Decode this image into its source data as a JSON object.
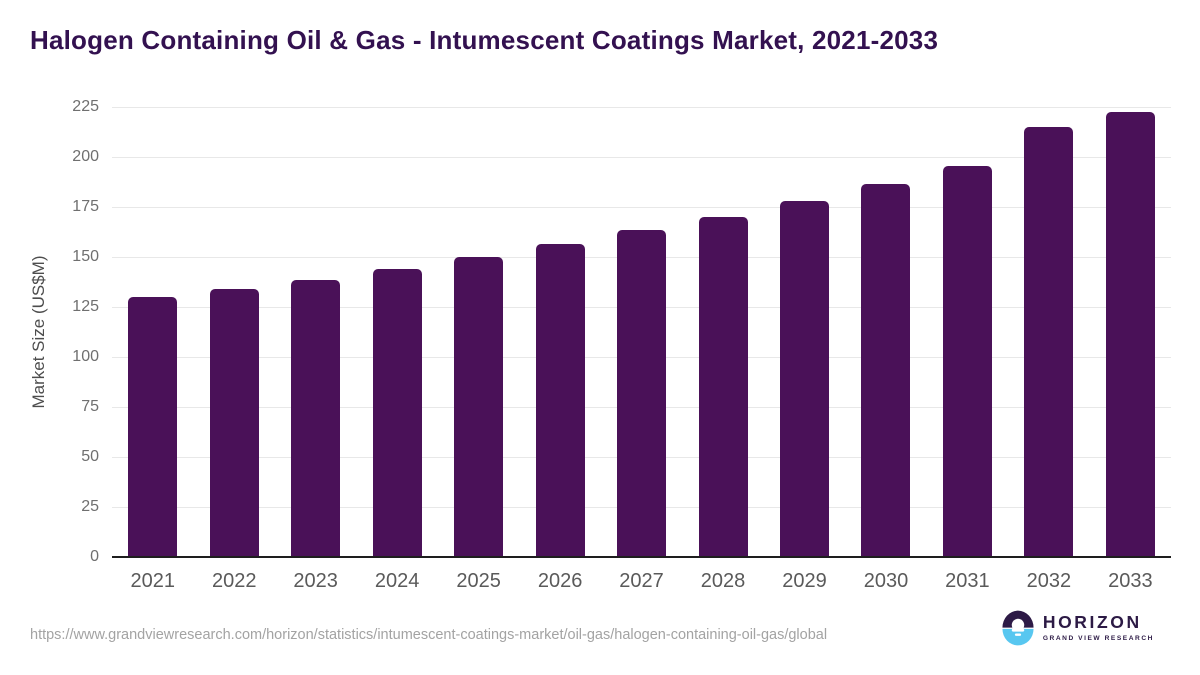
{
  "page": {
    "background": "#ffffff"
  },
  "chart_data": {
    "type": "bar",
    "title": "Halogen Containing Oil & Gas - Intumescent Coatings Market, 2021-2033",
    "xlabel": "",
    "ylabel": "Market Size (US$M)",
    "categories": [
      "2021",
      "2022",
      "2023",
      "2024",
      "2025",
      "2026",
      "2027",
      "2028",
      "2029",
      "2030",
      "2031",
      "2032",
      "2033"
    ],
    "values": [
      130,
      134,
      138.5,
      144,
      150,
      156.5,
      163.5,
      170,
      178,
      186.5,
      195.5,
      215,
      222.5
    ],
    "ylim": [
      0,
      225
    ],
    "yticks": [
      0,
      25,
      50,
      75,
      100,
      125,
      150,
      175,
      200,
      225
    ],
    "grid": true,
    "legend": "none",
    "bar_color": "#4a1158"
  },
  "footer": {
    "source_url": "https://www.grandviewresearch.com/horizon/statistics/intumescent-coatings-market/oil-gas/halogen-containing-oil-gas/global",
    "logo": {
      "brand": "HORIZON",
      "subbrand": "GRAND VIEW RESEARCH",
      "icon": "horizon-sun-over-water-icon",
      "purple": "#2d1a46",
      "blue": "#58c7f0"
    }
  },
  "colors": {
    "title": "#331150",
    "bar": "#4a1158",
    "gridline": "#e8e8e8",
    "axis_line": "#1e1e1e",
    "y_tick_label": "#6f6f6f",
    "x_tick_label": "#5a5a5a",
    "y_axis_title": "#4d4d4d",
    "source_url": "#a3a3a3"
  }
}
